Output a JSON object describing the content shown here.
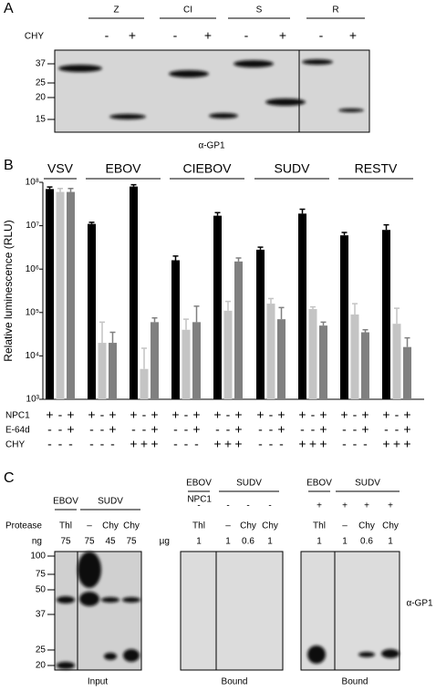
{
  "panel_a": {
    "label": "A",
    "groups": [
      "Z",
      "CI",
      "S",
      "R"
    ],
    "row_label": "CHY",
    "signs": [
      "-",
      "+",
      "-",
      "+",
      "-",
      "+",
      "-",
      "+"
    ],
    "markers": [
      "37",
      "25",
      "20",
      "15"
    ],
    "caption": "α-GP1"
  },
  "chart_data": {
    "type": "bar",
    "label": "B",
    "y_label": "Relative luminescence (RLU)",
    "log_scale": true,
    "ylim": [
      1000,
      100000000
    ],
    "yticks": [
      {
        "value": 1000,
        "label": "10³"
      },
      {
        "value": 10000,
        "label": "10⁴"
      },
      {
        "value": 100000,
        "label": "10⁵"
      },
      {
        "value": 1000000,
        "label": "10⁶"
      },
      {
        "value": 10000000,
        "label": "10⁷"
      },
      {
        "value": 100000000,
        "label": "10⁸"
      }
    ],
    "colors": [
      "#000000",
      "#c4c4c4",
      "#808080"
    ],
    "groups": [
      {
        "name": "VSV",
        "values": [
          70000000,
          60000000,
          60000000
        ],
        "errors": [
          8000000,
          12000000,
          12000000
        ]
      },
      {
        "name": "EBOV",
        "values": [
          11000000,
          20000,
          20000,
          80000000,
          5000,
          60000
        ],
        "errors": [
          1000000,
          40000,
          15000,
          8000000,
          10000,
          15000
        ]
      },
      {
        "name": "CIEBOV",
        "values": [
          1600000,
          40000,
          60000,
          17000000,
          110000,
          1500000
        ],
        "errors": [
          400000,
          30000,
          80000,
          3000000,
          70000,
          300000
        ]
      },
      {
        "name": "SUDV",
        "values": [
          2800000,
          160000,
          70000,
          19000000,
          120000,
          50000
        ],
        "errors": [
          400000,
          50000,
          60000,
          5000000,
          15000,
          10000
        ]
      },
      {
        "name": "RESTV",
        "values": [
          6000000,
          90000,
          35000,
          8000000,
          55000,
          16000
        ],
        "errors": [
          1000000,
          70000,
          5000,
          2500000,
          70000,
          10000
        ]
      }
    ],
    "conditions": [
      {
        "name": "NPC1",
        "signs": [
          [
            "+",
            "-",
            "+"
          ],
          [
            "+",
            "-",
            "+",
            "+",
            "-",
            "+"
          ],
          [
            "+",
            "-",
            "+",
            "+",
            "-",
            "+"
          ],
          [
            "+",
            "-",
            "+",
            "+",
            "-",
            "+"
          ],
          [
            "+",
            "-",
            "+",
            "+",
            "-",
            "+"
          ]
        ]
      },
      {
        "name": "E-64d",
        "signs": [
          [
            "-",
            "-",
            "+"
          ],
          [
            "-",
            "-",
            "+",
            "-",
            "-",
            "+"
          ],
          [
            "-",
            "-",
            "+",
            "-",
            "-",
            "+"
          ],
          [
            "-",
            "-",
            "+",
            "-",
            "-",
            "+"
          ],
          [
            "-",
            "-",
            "+",
            "-",
            "-",
            "+"
          ]
        ]
      },
      {
        "name": "CHY",
        "signs": [
          [
            "-",
            "-",
            "-"
          ],
          [
            "-",
            "-",
            "-",
            "+",
            "+",
            "+"
          ],
          [
            "-",
            "-",
            "-",
            "+",
            "+",
            "+"
          ],
          [
            "-",
            "-",
            "-",
            "+",
            "+",
            "+"
          ],
          [
            "-",
            "-",
            "-",
            "+",
            "+",
            "+"
          ]
        ]
      }
    ]
  },
  "panel_c": {
    "label": "C",
    "input": {
      "groups": [
        "EBOV",
        "SUDV"
      ],
      "protease_label": "Protease",
      "protease": [
        "Thl",
        "–",
        "Chy",
        "Chy"
      ],
      "amount_label": "ng",
      "amounts": [
        "75",
        "75",
        "45",
        "75"
      ],
      "markers": [
        "100",
        "75",
        "50",
        "37",
        "25",
        "20"
      ],
      "caption": "Input"
    },
    "bound_minus": {
      "groups": [
        "EBOV",
        "SUDV"
      ],
      "npc1_label": "NPC1",
      "npc1": [
        "-",
        "-",
        "-",
        "-"
      ],
      "protease": [
        "Thl",
        "–",
        "Chy",
        "Chy"
      ],
      "amount_label": "µg",
      "amounts": [
        "1",
        "1",
        "0.6",
        "1"
      ],
      "caption": "Bound"
    },
    "bound_plus": {
      "groups": [
        "EBOV",
        "SUDV"
      ],
      "npc1": [
        "+",
        "+",
        "+",
        "+"
      ],
      "protease": [
        "Thl",
        "–",
        "Chy",
        "Chy"
      ],
      "amounts": [
        "1",
        "1",
        "0.6",
        "1"
      ],
      "caption": "Bound",
      "antibody": "α-GP1"
    }
  }
}
